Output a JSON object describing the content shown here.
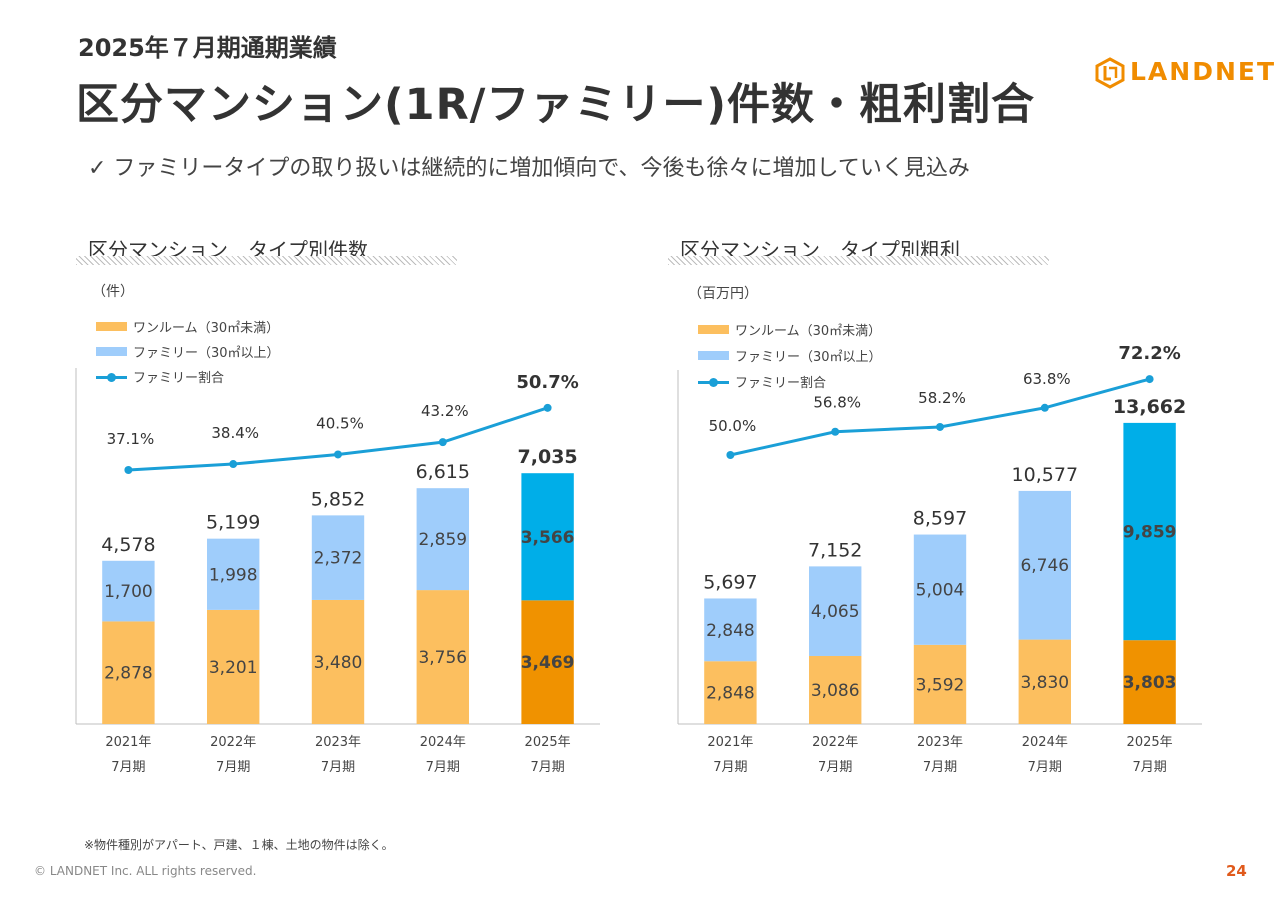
{
  "header": {
    "subtitle": "2025年７月期通期業績",
    "title": "区分マンション(1R/ファミリー)件数・粗利割合",
    "bullet": "✓ ファミリータイプの取り扱いは継続的に増加傾向で、今後も徐々に増加していく見込み"
  },
  "logo": {
    "text": "LANDNET",
    "color": "#f08c00"
  },
  "footer": {
    "note": "※物件種別がアパート、戸建、１棟、土地の物件は除く。",
    "copyright": "© LANDNET Inc. ALL rights reserved.",
    "page": "24"
  },
  "colors": {
    "oneroom": "#fcbf5f",
    "family": "#9fcdfb",
    "oneroom_highlight": "#f09200",
    "family_highlight": "#00aee8",
    "ratio_line": "#1a9fd7"
  },
  "chart_data": [
    {
      "type": "bar",
      "stacked": true,
      "title": "区分マンション　タイプ別件数",
      "unit": "（件）",
      "categories": [
        [
          "2021年",
          "7月期"
        ],
        [
          "2022年",
          "7月期"
        ],
        [
          "2023年",
          "7月期"
        ],
        [
          "2024年",
          "7月期"
        ],
        [
          "2025年",
          "7月期"
        ]
      ],
      "series": [
        {
          "name": "ワンルーム（30㎡未満）",
          "values": [
            2878,
            3201,
            3480,
            3756,
            3469
          ]
        },
        {
          "name": "ファミリー（30㎡以上）",
          "values": [
            1700,
            1998,
            2372,
            2859,
            3566
          ]
        }
      ],
      "totals": [
        4578,
        5199,
        5852,
        6615,
        7035
      ],
      "line": {
        "name": "ファミリー割合",
        "values": [
          37.1,
          38.4,
          40.5,
          43.2,
          50.7
        ]
      },
      "labels": {
        "oneroom": [
          "2,878",
          "3,201",
          "3,480",
          "3,756",
          "3,469"
        ],
        "family": [
          "1,700",
          "1,998",
          "2,372",
          "2,859",
          "3,566"
        ],
        "totals": [
          "4,578",
          "5,199",
          "5,852",
          "6,615",
          "7,035"
        ],
        "ratio": [
          "37.1%",
          "38.4%",
          "40.5%",
          "43.2%",
          "50.7%"
        ]
      },
      "highlight_index": 4
    },
    {
      "type": "bar",
      "stacked": true,
      "title": "区分マンション　タイプ別粗利",
      "unit": "（百万円）",
      "categories": [
        [
          "2021年",
          "7月期"
        ],
        [
          "2022年",
          "7月期"
        ],
        [
          "2023年",
          "7月期"
        ],
        [
          "2024年",
          "7月期"
        ],
        [
          "2025年",
          "7月期"
        ]
      ],
      "series": [
        {
          "name": "ワンルーム（30㎡未満）",
          "values": [
            2848,
            3086,
            3592,
            3830,
            3803
          ]
        },
        {
          "name": "ファミリー（30㎡以上）",
          "values": [
            2848,
            4065,
            5004,
            6746,
            9859
          ]
        }
      ],
      "totals": [
        5697,
        7152,
        8597,
        10577,
        13662
      ],
      "line": {
        "name": "ファミリー割合",
        "values": [
          50.0,
          56.8,
          58.2,
          63.8,
          72.2
        ]
      },
      "labels": {
        "oneroom": [
          "2,848",
          "3,086",
          "3,592",
          "3,830",
          "3,803"
        ],
        "family": [
          "2,848",
          "4,065",
          "5,004",
          "6,746",
          "9,859"
        ],
        "totals": [
          "5,697",
          "7,152",
          "8,597",
          "10,577",
          "13,662"
        ],
        "ratio": [
          "50.0%",
          "56.8%",
          "58.2%",
          "63.8%",
          "72.2%"
        ]
      },
      "highlight_index": 4
    }
  ]
}
